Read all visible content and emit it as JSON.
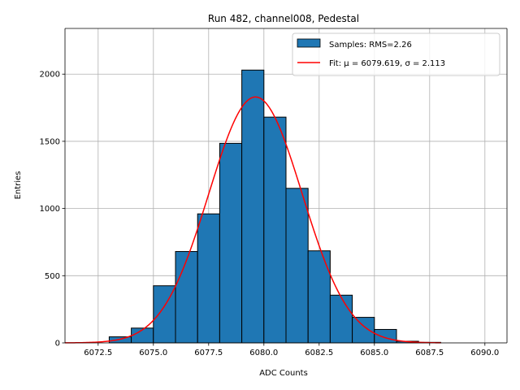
{
  "chart_data": {
    "type": "bar",
    "title": "Run 482, channel008, Pedestal",
    "xlabel": "ADC Counts",
    "ylabel": "Entries",
    "xlim": [
      6071.0,
      6091.0
    ],
    "ylim": [
      0,
      2340
    ],
    "grid": true,
    "legend_position": "top-right",
    "x_ticks": [
      6072.5,
      6075.0,
      6077.5,
      6080.0,
      6082.5,
      6085.0,
      6087.5,
      6090.0
    ],
    "x_tick_labels": [
      "6072.5",
      "6075.0",
      "6077.5",
      "6080.0",
      "6082.5",
      "6085.0",
      "6087.5",
      "6090.0"
    ],
    "y_ticks": [
      0,
      500,
      1000,
      1500,
      2000
    ],
    "y_tick_labels": [
      "0",
      "500",
      "1000",
      "1500",
      "2000"
    ],
    "series": [
      {
        "name": "Samples: RMS=2.26",
        "kind": "histogram",
        "color": "#1f77b4",
        "edgecolor": "#000000",
        "bins": [
          {
            "x0": 6073,
            "x1": 6074,
            "count": 45
          },
          {
            "x0": 6074,
            "x1": 6075,
            "count": 110
          },
          {
            "x0": 6075,
            "x1": 6076,
            "count": 425
          },
          {
            "x0": 6076,
            "x1": 6077,
            "count": 680
          },
          {
            "x0": 6077,
            "x1": 6078,
            "count": 960
          },
          {
            "x0": 6078,
            "x1": 6079,
            "count": 1485
          },
          {
            "x0": 6079,
            "x1": 6080,
            "count": 2030
          },
          {
            "x0": 6080,
            "x1": 6081,
            "count": 1680
          },
          {
            "x0": 6081,
            "x1": 6082,
            "count": 1150
          },
          {
            "x0": 6082,
            "x1": 6083,
            "count": 685
          },
          {
            "x0": 6083,
            "x1": 6084,
            "count": 355
          },
          {
            "x0": 6084,
            "x1": 6085,
            "count": 190
          },
          {
            "x0": 6085,
            "x1": 6086,
            "count": 100
          },
          {
            "x0": 6086,
            "x1": 6087,
            "count": 12
          },
          {
            "x0": 6087,
            "x1": 6088,
            "count": 4
          }
        ]
      },
      {
        "name": "Fit: μ = 6079.619, σ = 2.113",
        "kind": "gaussian-fit",
        "color": "#ff0000",
        "mu": 6079.619,
        "sigma": 2.113,
        "amplitude": 1830,
        "x_range": [
          6071.0,
          6088.0
        ]
      }
    ]
  }
}
